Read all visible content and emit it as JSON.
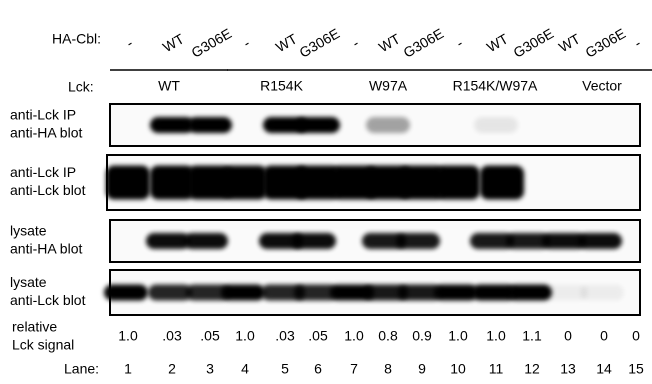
{
  "header": {
    "ha_cbl_label": "HA-Cbl:",
    "ha_cbl": [
      "-",
      "WT",
      "G306E",
      "-",
      "WT",
      "G306E",
      "-",
      "WT",
      "G306E",
      "-",
      "WT",
      "G306E",
      "WT",
      "G306E",
      "-"
    ],
    "lck_label": "Lck:",
    "lck_groups": [
      "WT",
      "R154K",
      "W97A",
      "R154K/W97A",
      "Vector"
    ]
  },
  "panels": [
    {
      "lines": [
        "anti-Lck IP",
        "anti-HA blot"
      ]
    },
    {
      "lines": [
        "anti-Lck IP",
        "anti-Lck blot"
      ]
    },
    {
      "lines": [
        "lysate",
        "anti-HA blot"
      ]
    },
    {
      "lines": [
        "lysate",
        "anti-Lck blot"
      ]
    }
  ],
  "signal": {
    "label": [
      "relative",
      "Lck signal"
    ],
    "values": [
      "1.0",
      ".03",
      ".05",
      "1.0",
      ".03",
      ".05",
      "1.0",
      "0.8",
      "0.9",
      "1.0",
      "1.0",
      "1.1",
      "0",
      "0",
      "0"
    ]
  },
  "lanes": {
    "label": "Lane:",
    "numbers": [
      1,
      2,
      3,
      4,
      5,
      6,
      7,
      8,
      9,
      10,
      11,
      12,
      13,
      14,
      15
    ]
  }
}
